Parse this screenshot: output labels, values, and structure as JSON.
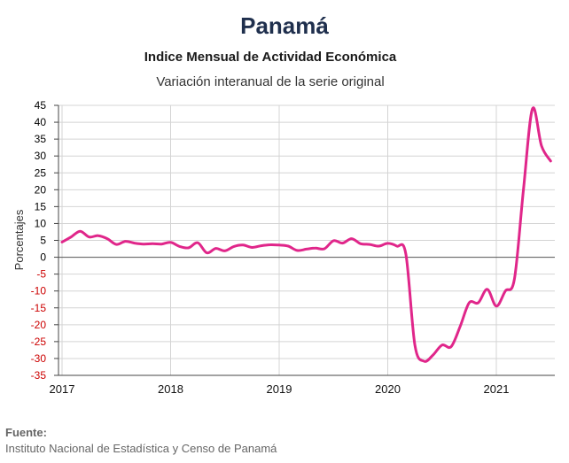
{
  "header": {
    "title": "Panamá",
    "subtitle": "Indice Mensual de  Actividad Económica",
    "subtitle2": "Variación interanual de la serie original"
  },
  "source": {
    "label": "Fuente:",
    "text": "Instituto Nacional de Estadística y Censo de Panamá"
  },
  "colors": {
    "line": "#e0268a",
    "negative_ticks": "#cc0000",
    "positive_ticks": "#000000",
    "grid": "#d4d4d4"
  },
  "chart_data": {
    "type": "line",
    "title": "Panamá",
    "subtitle": "Indice Mensual de  Actividad Económica",
    "ylabel": "Porcentajes",
    "xlabel": "",
    "ylim": [
      -35,
      45
    ],
    "y_ticks": [
      45,
      40,
      35,
      30,
      25,
      20,
      15,
      10,
      5,
      0,
      -5,
      -10,
      -15,
      -20,
      -25,
      -30,
      -35
    ],
    "x_ticks": [
      "2017",
      "2018",
      "2019",
      "2020",
      "2021"
    ],
    "grid": true,
    "legend": "none",
    "series": [
      {
        "values": [
          {
            "x": "2017-01",
            "y": 4.5
          },
          {
            "x": "2017-02",
            "y": 6.0
          },
          {
            "x": "2017-03",
            "y": 7.7
          },
          {
            "x": "2017-04",
            "y": 6.0
          },
          {
            "x": "2017-05",
            "y": 6.4
          },
          {
            "x": "2017-06",
            "y": 5.5
          },
          {
            "x": "2017-07",
            "y": 3.8
          },
          {
            "x": "2017-08",
            "y": 4.7
          },
          {
            "x": "2017-09",
            "y": 4.2
          },
          {
            "x": "2017-10",
            "y": 3.9
          },
          {
            "x": "2017-11",
            "y": 4.0
          },
          {
            "x": "2017-12",
            "y": 3.9
          },
          {
            "x": "2018-01",
            "y": 4.4
          },
          {
            "x": "2018-02",
            "y": 3.2
          },
          {
            "x": "2018-03",
            "y": 2.8
          },
          {
            "x": "2018-04",
            "y": 4.3
          },
          {
            "x": "2018-05",
            "y": 1.3
          },
          {
            "x": "2018-06",
            "y": 2.6
          },
          {
            "x": "2018-07",
            "y": 1.9
          },
          {
            "x": "2018-08",
            "y": 3.2
          },
          {
            "x": "2018-09",
            "y": 3.6
          },
          {
            "x": "2018-10",
            "y": 2.9
          },
          {
            "x": "2018-11",
            "y": 3.4
          },
          {
            "x": "2018-12",
            "y": 3.7
          },
          {
            "x": "2019-01",
            "y": 3.6
          },
          {
            "x": "2019-02",
            "y": 3.3
          },
          {
            "x": "2019-03",
            "y": 2.0
          },
          {
            "x": "2019-04",
            "y": 2.4
          },
          {
            "x": "2019-05",
            "y": 2.7
          },
          {
            "x": "2019-06",
            "y": 2.5
          },
          {
            "x": "2019-07",
            "y": 4.9
          },
          {
            "x": "2019-08",
            "y": 4.2
          },
          {
            "x": "2019-09",
            "y": 5.5
          },
          {
            "x": "2019-10",
            "y": 4.0
          },
          {
            "x": "2019-11",
            "y": 3.8
          },
          {
            "x": "2019-12",
            "y": 3.3
          },
          {
            "x": "2020-01",
            "y": 4.1
          },
          {
            "x": "2020-02",
            "y": 3.3
          },
          {
            "x": "2020-03",
            "y": 1.0
          },
          {
            "x": "2020-04",
            "y": -26.0
          },
          {
            "x": "2020-05",
            "y": -30.8
          },
          {
            "x": "2020-06",
            "y": -29.0
          },
          {
            "x": "2020-07",
            "y": -26.0
          },
          {
            "x": "2020-08",
            "y": -26.5
          },
          {
            "x": "2020-09",
            "y": -20.5
          },
          {
            "x": "2020-10",
            "y": -13.5
          },
          {
            "x": "2020-11",
            "y": -13.5
          },
          {
            "x": "2020-12",
            "y": -9.5
          },
          {
            "x": "2021-01",
            "y": -14.5
          },
          {
            "x": "2021-02",
            "y": -10.0
          },
          {
            "x": "2021-03",
            "y": -6.5
          },
          {
            "x": "2021-04",
            "y": 20.0
          },
          {
            "x": "2021-05",
            "y": 44.0
          },
          {
            "x": "2021-06",
            "y": 33.0
          },
          {
            "x": "2021-07",
            "y": 28.5
          }
        ]
      }
    ]
  }
}
